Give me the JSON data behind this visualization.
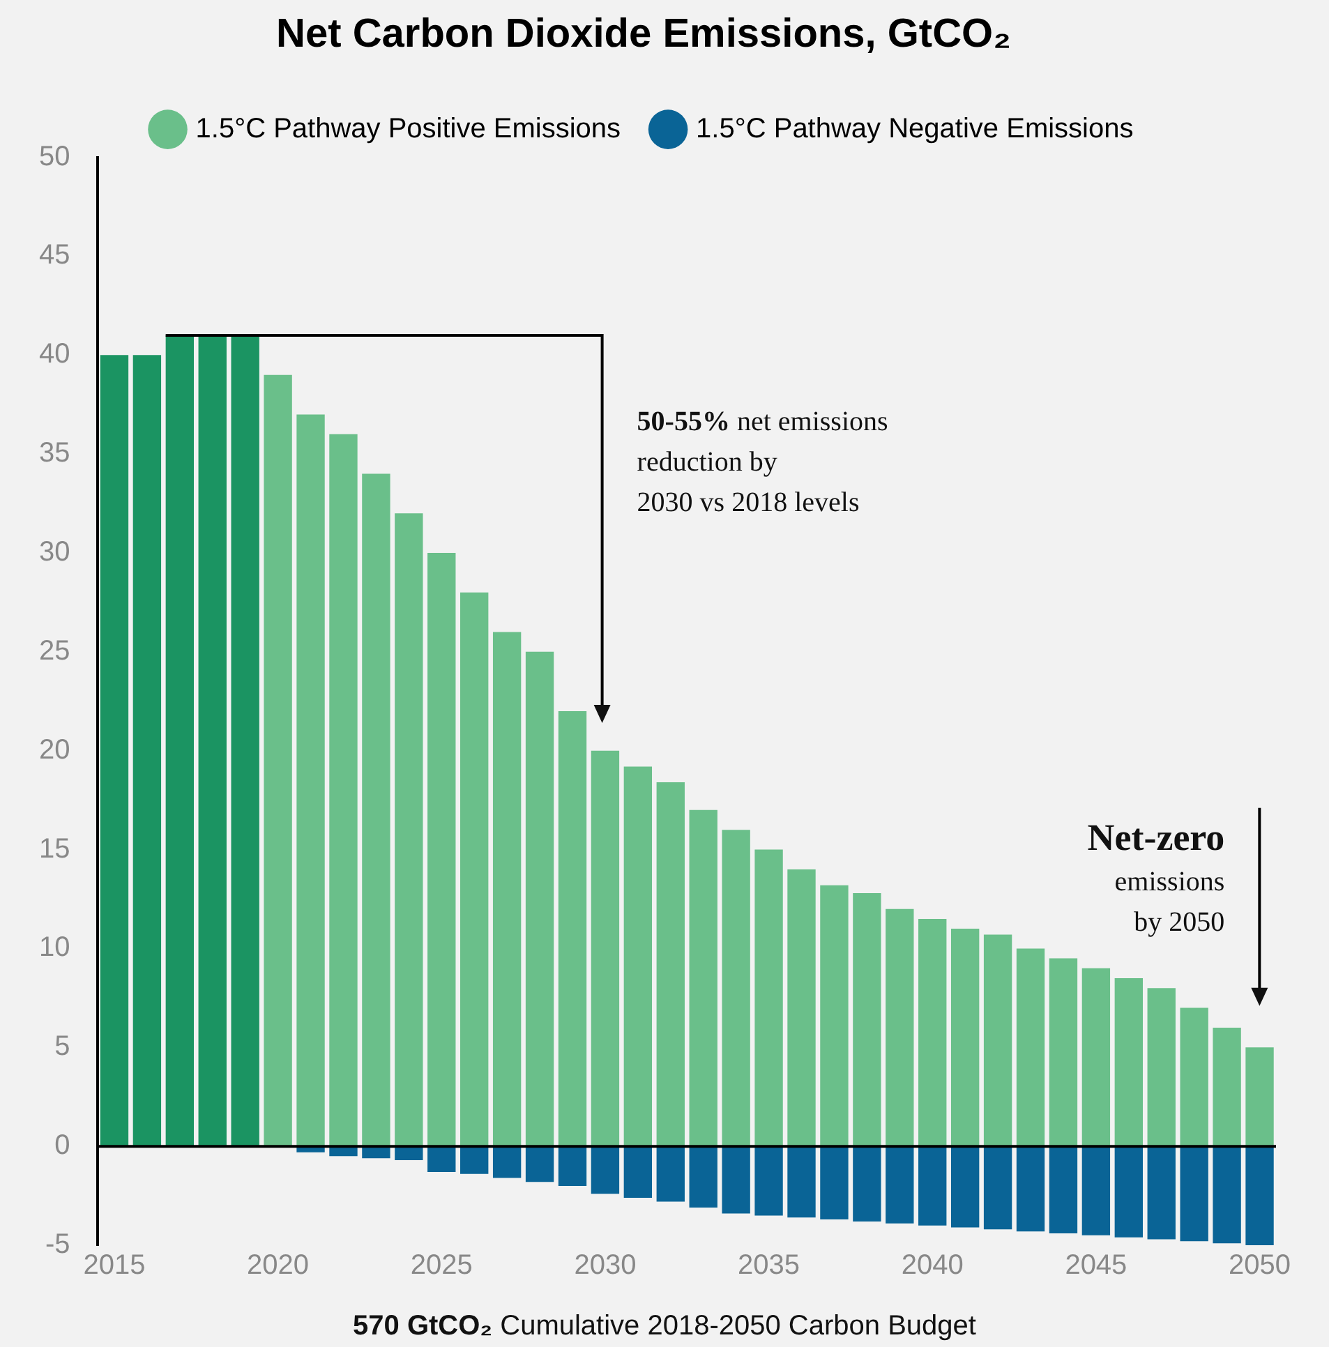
{
  "chart_data": {
    "type": "bar",
    "title": "Net Carbon Dioxide Emissions, GtCO₂",
    "stacked": true,
    "x": [
      2015,
      2016,
      2017,
      2018,
      2019,
      2020,
      2021,
      2022,
      2023,
      2024,
      2025,
      2026,
      2027,
      2028,
      2029,
      2030,
      2031,
      2032,
      2033,
      2034,
      2035,
      2036,
      2037,
      2038,
      2039,
      2040,
      2041,
      2042,
      2043,
      2044,
      2045,
      2046,
      2047,
      2048,
      2049,
      2050
    ],
    "xlim": [
      2014.5,
      2050.5
    ],
    "xticks": [
      2015,
      2020,
      2025,
      2030,
      2035,
      2040,
      2045,
      2050
    ],
    "ylim": [
      -5,
      50
    ],
    "yticks": [
      -5,
      0,
      5,
      10,
      15,
      20,
      25,
      30,
      35,
      40,
      45,
      50
    ],
    "series": [
      {
        "name": "1.5°C Pathway Positive Emissions",
        "color": "#6abf8a",
        "colors": [
          "#1b9462",
          "#1b9462",
          "#1b9462",
          "#1b9462",
          "#1b9462",
          "#6abf8a",
          "#6abf8a",
          "#6abf8a",
          "#6abf8a",
          "#6abf8a",
          "#6abf8a",
          "#6abf8a",
          "#6abf8a",
          "#6abf8a",
          "#6abf8a",
          "#6abf8a",
          "#6abf8a",
          "#6abf8a",
          "#6abf8a",
          "#6abf8a",
          "#6abf8a",
          "#6abf8a",
          "#6abf8a",
          "#6abf8a",
          "#6abf8a",
          "#6abf8a",
          "#6abf8a",
          "#6abf8a",
          "#6abf8a",
          "#6abf8a",
          "#6abf8a",
          "#6abf8a",
          "#6abf8a",
          "#6abf8a",
          "#6abf8a",
          "#6abf8a"
        ],
        "values": [
          40,
          40,
          41,
          41,
          41,
          39,
          37,
          36,
          34,
          32,
          30,
          28,
          26,
          25,
          22,
          20,
          19.2,
          18.4,
          17,
          16,
          15,
          14,
          13.2,
          12.8,
          12,
          11.5,
          11,
          10.7,
          10,
          9.5,
          9,
          8.5,
          8,
          7,
          6,
          5
        ]
      },
      {
        "name": "1.5°C Pathway Negative Emissions",
        "color": "#0a6496",
        "values": [
          null,
          null,
          null,
          null,
          null,
          null,
          -0.3,
          -0.5,
          -0.6,
          -0.7,
          -1.3,
          -1.4,
          -1.6,
          -1.8,
          -2.0,
          -2.4,
          -2.6,
          -2.8,
          -3.1,
          -3.4,
          -3.5,
          -3.6,
          -3.7,
          -3.8,
          -3.9,
          -4.0,
          -4.1,
          -4.2,
          -4.3,
          -4.4,
          -4.5,
          -4.6,
          -4.7,
          -4.8,
          -4.9,
          -5.0
        ]
      }
    ],
    "legend": "top",
    "grid": false,
    "ref_lines": [
      {
        "axis": "y",
        "value": 0,
        "color": "#000000"
      }
    ],
    "annotations": [
      "50-55% net emissions reduction by 2030 vs 2018 levels",
      "Net-zero emissions by 2050",
      "570 GtCO₂ Cumulative 2018-2050 Carbon Budget"
    ]
  }
}
